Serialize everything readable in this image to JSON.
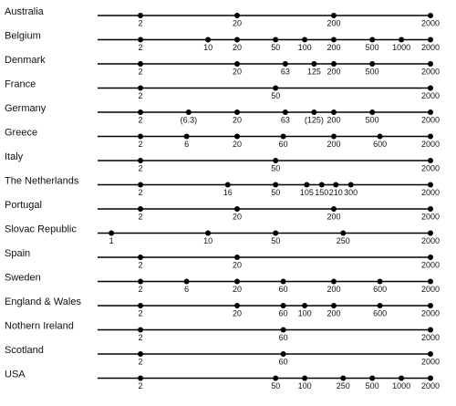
{
  "chart_data": {
    "type": "dotstrip",
    "log_scale": true,
    "xlim": [
      0.72,
      2000
    ],
    "color": "#000000",
    "rows": [
      {
        "name": "Australia",
        "values": [
          2,
          20,
          200,
          2000
        ]
      },
      {
        "name": "Belgium",
        "values": [
          2,
          10,
          20,
          50,
          100,
          200,
          500,
          1000,
          2000
        ]
      },
      {
        "name": "Denmark",
        "values": [
          2,
          20,
          63,
          125,
          200,
          500,
          2000
        ]
      },
      {
        "name": "France",
        "values": [
          2,
          50,
          2000
        ]
      },
      {
        "name": "Germany",
        "values": [
          2,
          6.3,
          20,
          63,
          125,
          200,
          500,
          2000
        ],
        "value_labels": [
          "2",
          "(6.3)",
          "20",
          "63",
          "(125)",
          "200",
          "500",
          "2000"
        ]
      },
      {
        "name": "Greece",
        "values": [
          2,
          6,
          20,
          60,
          200,
          600,
          2000
        ]
      },
      {
        "name": "Italy",
        "values": [
          2,
          50,
          2000
        ]
      },
      {
        "name": "The Netherlands",
        "values": [
          2,
          16,
          50,
          105,
          150,
          210,
          300,
          2000
        ]
      },
      {
        "name": "Portugal",
        "values": [
          2,
          20,
          200,
          2000
        ]
      },
      {
        "name": "Slovac Republic",
        "values": [
          1,
          10,
          50,
          250,
          2000
        ]
      },
      {
        "name": "Spain",
        "values": [
          2,
          20,
          2000
        ]
      },
      {
        "name": "Sweden",
        "values": [
          2,
          6,
          20,
          60,
          200,
          600,
          2000
        ]
      },
      {
        "name": "England & Wales",
        "values": [
          2,
          20,
          60,
          100,
          200,
          600,
          2000
        ]
      },
      {
        "name": "Nothern Ireland",
        "values": [
          2,
          60,
          2000
        ]
      },
      {
        "name": "Scotland",
        "values": [
          2,
          60,
          2000
        ]
      },
      {
        "name": "USA",
        "values": [
          2,
          50,
          100,
          250,
          500,
          1000,
          2000
        ]
      }
    ]
  }
}
